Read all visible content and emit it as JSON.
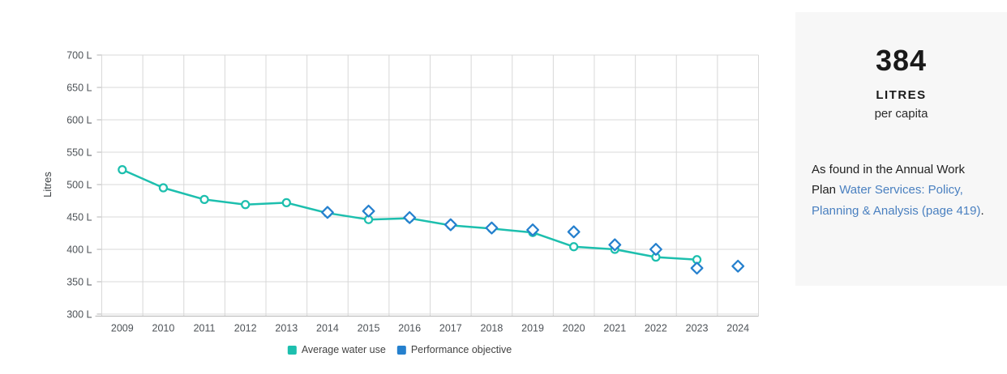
{
  "chart_data": {
    "type": "line",
    "title": "",
    "categories": [
      "2009",
      "2010",
      "2011",
      "2012",
      "2013",
      "2014",
      "2015",
      "2016",
      "2017",
      "2018",
      "2019",
      "2020",
      "2021",
      "2022",
      "2023",
      "2024"
    ],
    "series": [
      {
        "name": "Average water use",
        "marker": "circle",
        "color": "#1dbfae",
        "values": [
          523,
          495,
          477,
          469,
          472,
          456,
          446,
          448,
          437,
          432,
          426,
          404,
          400,
          388,
          384,
          null
        ]
      },
      {
        "name": "Performance objective",
        "marker": "diamond",
        "color": "#2580ce",
        "values": [
          null,
          null,
          null,
          null,
          null,
          457,
          459,
          449,
          438,
          433,
          430,
          427,
          407,
          400,
          371,
          374
        ]
      }
    ],
    "xlabel": "",
    "ylabel": "Litres",
    "ylim": [
      300,
      700
    ],
    "y_tick_step": 50,
    "y_tick_suffix": " L",
    "grid": true,
    "legend_position": "bottom"
  },
  "colors": {
    "grid": "#d8d8d8",
    "axis": "#b4b4b4",
    "tick_text": "#4d5257",
    "panel_bg": "#f7f7f7",
    "link": "#4a80c0"
  },
  "panel": {
    "headline_value": "384",
    "headline_unit": "LITRES",
    "headline_sub": "per capita",
    "body_prefix": "As found in the Annual Work Plan ",
    "link_text": "Water Services: Policy, Planning & Analysis (page 419)",
    "body_suffix": "."
  }
}
